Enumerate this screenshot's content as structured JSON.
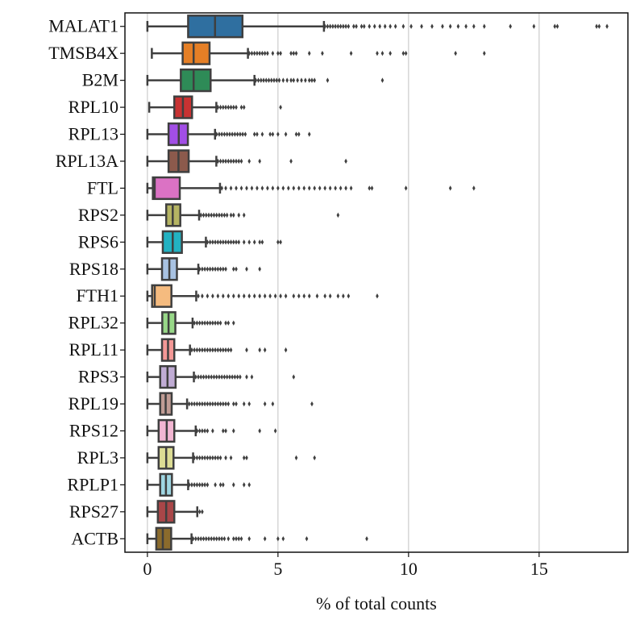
{
  "chart_data": {
    "type": "box",
    "orientation": "horizontal",
    "title": "",
    "xlabel": "% of total counts",
    "ylabel": "",
    "xlim": [
      -0.86,
      18.4
    ],
    "xticks": [
      0,
      5,
      10,
      15
    ],
    "xtick_labels": [
      "0",
      "5",
      "10",
      "15"
    ],
    "grid": "vertical lines at x ticks",
    "box_edge_color": "#3f3f3f",
    "series": [
      {
        "name": "MALAT1",
        "color": "#2f6fa0",
        "whislo": 0,
        "q1": 1.56,
        "med": 2.59,
        "q3": 3.64,
        "whishi": 6.76,
        "outliers": [
          6.8,
          6.9,
          7.0,
          7.1,
          7.2,
          7.3,
          7.4,
          7.5,
          7.6,
          7.7,
          7.9,
          8.0,
          8.2,
          8.3,
          8.5,
          8.7,
          8.9,
          9.1,
          9.3,
          9.5,
          9.8,
          10.1,
          10.5,
          10.9,
          11.3,
          11.6,
          11.9,
          12.2,
          12.5,
          12.9,
          13.9,
          14.8,
          15.6,
          15.7,
          17.2,
          17.3,
          17.6
        ]
      },
      {
        "name": "TMSB4X",
        "color": "#e57f26",
        "whislo": 0.17,
        "q1": 1.35,
        "med": 1.77,
        "q3": 2.38,
        "whishi": 3.85,
        "outliers": [
          3.9,
          4.0,
          4.1,
          4.2,
          4.3,
          4.4,
          4.5,
          4.6,
          4.8,
          5.0,
          5.1,
          5.5,
          5.6,
          5.7,
          6.2,
          6.7,
          7.8,
          8.8,
          9.0,
          9.3,
          9.8,
          9.9,
          11.8,
          12.9
        ]
      },
      {
        "name": "B2M",
        "color": "#2e8b57",
        "whislo": 0,
        "q1": 1.28,
        "med": 1.77,
        "q3": 2.42,
        "whishi": 4.1,
        "outliers": [
          4.15,
          4.25,
          4.35,
          4.45,
          4.55,
          4.65,
          4.75,
          4.85,
          4.95,
          5.05,
          5.2,
          5.35,
          5.5,
          5.6,
          5.75,
          5.9,
          6.05,
          6.2,
          6.3,
          6.4,
          6.9,
          9.0
        ]
      },
      {
        "name": "RPL10",
        "color": "#c83232",
        "whislo": 0.07,
        "q1": 1.03,
        "med": 1.36,
        "q3": 1.71,
        "whishi": 2.64,
        "outliers": [
          2.7,
          2.8,
          2.9,
          3.0,
          3.1,
          3.2,
          3.3,
          3.4,
          3.6,
          3.7,
          5.1
        ]
      },
      {
        "name": "RPL13",
        "color": "#a24ee6",
        "whislo": 0,
        "q1": 0.81,
        "med": 1.2,
        "q3": 1.55,
        "whishi": 2.59,
        "outliers": [
          2.65,
          2.75,
          2.85,
          2.95,
          3.05,
          3.15,
          3.25,
          3.35,
          3.45,
          3.55,
          3.65,
          3.75,
          4.1,
          4.2,
          4.4,
          4.7,
          4.8,
          5.0,
          5.3,
          5.7,
          5.8,
          6.2
        ]
      },
      {
        "name": "RPL13A",
        "color": "#8c5a4c",
        "whislo": 0,
        "q1": 0.81,
        "med": 1.19,
        "q3": 1.58,
        "whishi": 2.64,
        "outliers": [
          2.7,
          2.8,
          2.9,
          3.0,
          3.1,
          3.2,
          3.3,
          3.4,
          3.5,
          3.6,
          3.9,
          4.3,
          5.5,
          7.6
        ]
      },
      {
        "name": "FTL",
        "color": "#db72c4",
        "whislo": 0,
        "q1": 0.21,
        "med": 0.28,
        "q3": 1.24,
        "whishi": 2.78,
        "outliers": [
          2.85,
          3.0,
          3.2,
          3.4,
          3.6,
          3.8,
          4.0,
          4.2,
          4.4,
          4.6,
          4.8,
          5.0,
          5.2,
          5.4,
          5.6,
          5.8,
          6.0,
          6.2,
          6.4,
          6.6,
          6.8,
          7.0,
          7.2,
          7.4,
          7.6,
          7.8,
          8.5,
          8.6,
          9.9,
          11.6,
          12.5
        ]
      },
      {
        "name": "RPS2",
        "color": "#b5b463",
        "whislo": 0,
        "q1": 0.72,
        "med": 0.97,
        "q3": 1.26,
        "whishi": 1.98,
        "outliers": [
          2.05,
          2.15,
          2.25,
          2.35,
          2.45,
          2.55,
          2.65,
          2.75,
          2.85,
          2.95,
          3.05,
          3.2,
          3.3,
          3.5,
          3.7,
          7.3
        ]
      },
      {
        "name": "RPS6",
        "color": "#22b2c2",
        "whislo": 0,
        "q1": 0.59,
        "med": 0.97,
        "q3": 1.32,
        "whishi": 2.24,
        "outliers": [
          2.3,
          2.4,
          2.5,
          2.6,
          2.7,
          2.8,
          2.9,
          3.0,
          3.1,
          3.2,
          3.3,
          3.4,
          3.5,
          3.7,
          3.9,
          4.1,
          4.3,
          4.4,
          5.0,
          5.1
        ]
      },
      {
        "name": "RPS18",
        "color": "#a8c2e2",
        "whislo": 0,
        "q1": 0.56,
        "med": 0.84,
        "q3": 1.13,
        "whishi": 1.95,
        "outliers": [
          2.0,
          2.1,
          2.2,
          2.3,
          2.4,
          2.5,
          2.6,
          2.7,
          2.8,
          2.9,
          3.0,
          3.3,
          3.4,
          3.8,
          4.3
        ]
      },
      {
        "name": "FTH1",
        "color": "#f5bb7f",
        "whislo": 0,
        "q1": 0.18,
        "med": 0.28,
        "q3": 0.92,
        "whishi": 1.87,
        "outliers": [
          1.95,
          2.1,
          2.3,
          2.5,
          2.7,
          2.9,
          3.1,
          3.3,
          3.5,
          3.7,
          3.9,
          4.1,
          4.3,
          4.5,
          4.7,
          4.9,
          5.1,
          5.3,
          5.6,
          5.8,
          6.0,
          6.2,
          6.5,
          6.8,
          7.0,
          7.3,
          7.5,
          7.7,
          8.8
        ]
      },
      {
        "name": "RPL32",
        "color": "#98d888",
        "whislo": 0,
        "q1": 0.57,
        "med": 0.81,
        "q3": 1.07,
        "whishi": 1.73,
        "outliers": [
          1.8,
          1.9,
          2.0,
          2.1,
          2.2,
          2.3,
          2.4,
          2.5,
          2.6,
          2.7,
          2.8,
          3.0,
          3.1,
          3.3
        ]
      },
      {
        "name": "RPL11",
        "color": "#f39896",
        "whislo": 0,
        "q1": 0.56,
        "med": 0.79,
        "q3": 1.03,
        "whishi": 1.63,
        "outliers": [
          1.7,
          1.8,
          1.9,
          2.0,
          2.1,
          2.2,
          2.3,
          2.4,
          2.5,
          2.6,
          2.7,
          2.8,
          2.9,
          3.0,
          3.1,
          3.2,
          3.8,
          4.3,
          4.5,
          5.3
        ]
      },
      {
        "name": "RPS3",
        "color": "#c0acd4",
        "whislo": 0,
        "q1": 0.49,
        "med": 0.77,
        "q3": 1.08,
        "whishi": 1.78,
        "outliers": [
          1.85,
          1.95,
          2.05,
          2.15,
          2.25,
          2.35,
          2.45,
          2.55,
          2.65,
          2.75,
          2.85,
          2.95,
          3.05,
          3.15,
          3.25,
          3.35,
          3.45,
          3.55,
          3.8,
          4.0,
          5.6
        ]
      },
      {
        "name": "RPL19",
        "color": "#c09c94",
        "whislo": 0,
        "q1": 0.49,
        "med": 0.7,
        "q3": 0.93,
        "whishi": 1.52,
        "outliers": [
          1.6,
          1.7,
          1.8,
          1.9,
          2.0,
          2.1,
          2.2,
          2.3,
          2.4,
          2.5,
          2.6,
          2.7,
          2.8,
          2.9,
          3.0,
          3.1,
          3.3,
          3.4,
          3.7,
          3.9,
          4.5,
          4.8,
          6.3
        ]
      },
      {
        "name": "RPS12",
        "color": "#f2b6d2",
        "whislo": 0,
        "q1": 0.43,
        "med": 0.74,
        "q3": 1.03,
        "whishi": 1.85,
        "outliers": [
          1.9,
          2.0,
          2.1,
          2.2,
          2.3,
          2.5,
          2.9,
          3.0,
          3.3,
          4.3,
          4.9
        ]
      },
      {
        "name": "RPL3",
        "color": "#dcdc94",
        "whislo": 0,
        "q1": 0.43,
        "med": 0.72,
        "q3": 1.0,
        "whishi": 1.75,
        "outliers": [
          1.8,
          1.9,
          2.0,
          2.1,
          2.2,
          2.3,
          2.4,
          2.5,
          2.6,
          2.7,
          2.8,
          3.0,
          3.2,
          3.7,
          3.8,
          5.7,
          6.4
        ]
      },
      {
        "name": "RPLP1",
        "color": "#9fd6e2",
        "whislo": 0,
        "q1": 0.49,
        "med": 0.71,
        "q3": 0.94,
        "whishi": 1.56,
        "outliers": [
          1.6,
          1.7,
          1.8,
          1.9,
          2.0,
          2.1,
          2.2,
          2.3,
          2.6,
          2.8,
          2.9,
          3.3,
          3.7,
          3.9
        ]
      },
      {
        "name": "RPS27",
        "color": "#a94648",
        "whislo": 0,
        "q1": 0.4,
        "med": 0.72,
        "q3": 1.03,
        "whishi": 1.91,
        "outliers": [
          2.0,
          2.1
        ]
      },
      {
        "name": "ACTB",
        "color": "#8b6b2c",
        "whislo": 0,
        "q1": 0.34,
        "med": 0.59,
        "q3": 0.91,
        "whishi": 1.69,
        "outliers": [
          1.75,
          1.85,
          1.95,
          2.05,
          2.15,
          2.25,
          2.35,
          2.45,
          2.55,
          2.65,
          2.75,
          2.85,
          2.95,
          3.1,
          3.3,
          3.4,
          3.5,
          3.6,
          3.9,
          4.5,
          5.0,
          5.2,
          6.1,
          8.4
        ]
      }
    ]
  }
}
